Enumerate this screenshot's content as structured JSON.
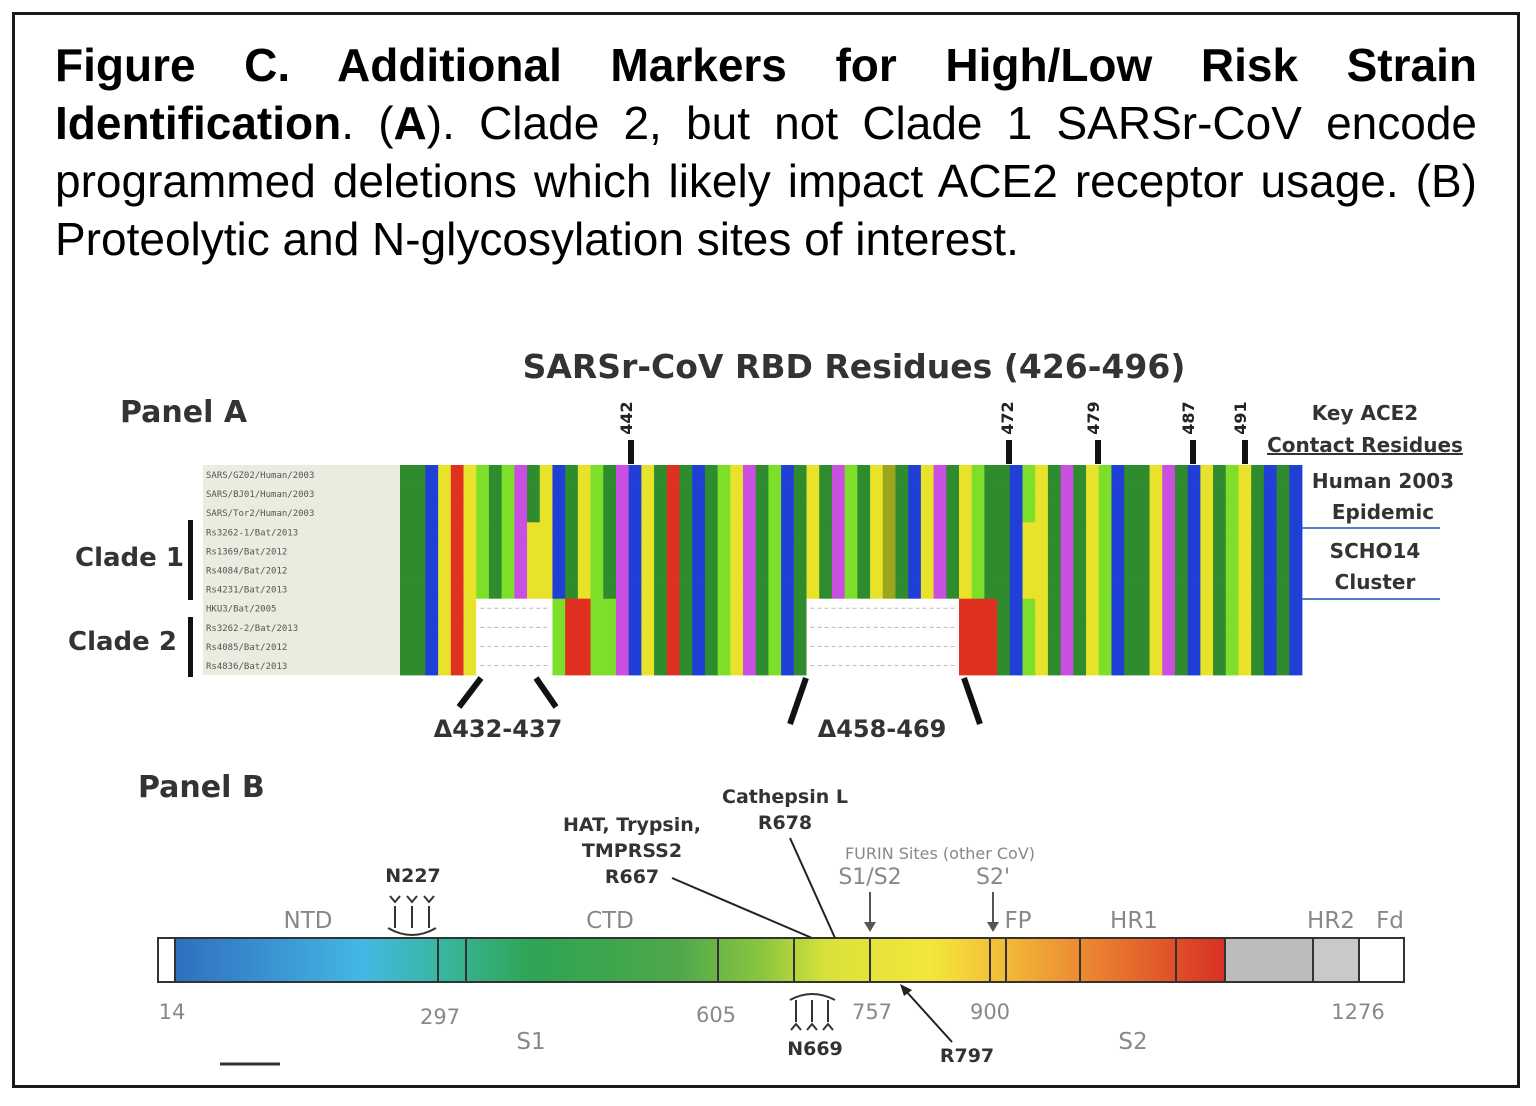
{
  "caption": {
    "title": "Figure C. Additional Markers for High/Low Risk Strain Identification",
    "label_a": "A",
    "text_a": ". Clade 2, but not Clade 1 SARSr-CoV encode programmed deletions which likely impact ACE2 receptor usage.",
    "text_b": "(B) Proteolytic and N-glycosylation sites of interest."
  },
  "panel_a": {
    "label": "Panel A",
    "title": "SARSr-CoV RBD Residues (426-496)",
    "key_label_1": "Key ACE2",
    "key_label_2": "Contact Residues",
    "contact_residues": [
      "442",
      "472",
      "479",
      "487",
      "491"
    ],
    "group_labels": [
      {
        "line1": "Human 2003",
        "line2": "Epidemic"
      },
      {
        "line1": "SCHO14",
        "line2": "Cluster"
      }
    ],
    "clade_labels": [
      "Clade 1",
      "Clade 2"
    ],
    "sequence_names": [
      "SARS/GZ02/Human/2003",
      "SARS/BJ01/Human/2003",
      "SARS/Tor2/Human/2003",
      "Rs3262-1/Bat/2013",
      "Rs1369/Bat/2012",
      "Rs4084/Bat/2012",
      "Rs4231/Bat/2013",
      "HKU3/Bat/2005",
      "Rs3262-2/Bat/2013",
      "Rs4085/Bat/2012",
      "Rs4836/Bat/2013"
    ],
    "deletions": [
      "Δ432-437",
      "Δ458-469"
    ],
    "residue_colors": {
      "hydrophobic": "#2e8b2e",
      "polar": "#7ddf2a",
      "positive": "#1f3fd6",
      "negative": "#e03020",
      "aromatic": "#e8e22a",
      "special": "#c84fe0",
      "proline": "#9aa61d",
      "gap": "#ffffff"
    }
  },
  "panel_b": {
    "label": "Panel B",
    "domains": [
      "NTD",
      "CTD",
      "FP",
      "HR1",
      "HR2",
      "Fd"
    ],
    "subunits": [
      "S1",
      "S2"
    ],
    "positions": [
      "14",
      "297",
      "605",
      "757",
      "900",
      "1276"
    ],
    "glyco_sites": [
      "N227",
      "N669"
    ],
    "protease_hat": [
      "HAT, Trypsin,",
      "TMPRSS2",
      "R667"
    ],
    "protease_cathepsin": [
      "Cathepsin L",
      "R678"
    ],
    "furin_label": "FURIN Sites (other CoV)",
    "cleavage_sites": [
      "S1/S2",
      "S2'"
    ],
    "r797": "R797"
  }
}
